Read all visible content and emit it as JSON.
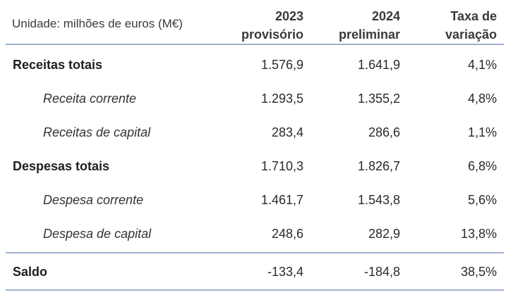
{
  "header": {
    "unit": "Unidade: milhões de euros (M€)",
    "col1_line1": "2023",
    "col1_line2": "provisório",
    "col2_line1": "2024",
    "col2_line2": "preliminar",
    "col3_line1": "Taxa de",
    "col3_line2": "variação"
  },
  "rows": [
    {
      "label": "Receitas totais",
      "v2023": "1.576,9",
      "v2024": "1.641,9",
      "rate": "4,1%"
    },
    {
      "label": "Receita corrente",
      "v2023": "1.293,5",
      "v2024": "1.355,2",
      "rate": "4,8%"
    },
    {
      "label": "Receitas de capital",
      "v2023": "283,4",
      "v2024": "286,6",
      "rate": "1,1%"
    },
    {
      "label": "Despesas totais",
      "v2023": "1.710,3",
      "v2024": "1.826,7",
      "rate": "6,8%"
    },
    {
      "label": "Despesa corrente",
      "v2023": "1.461,7",
      "v2024": "1.543,8",
      "rate": "5,6%"
    },
    {
      "label": "Despesa de capital",
      "v2023": "248,6",
      "v2024": "282,9",
      "rate": "13,8%"
    }
  ],
  "saldo": {
    "label": "Saldo",
    "v2023": "-133,4",
    "v2024": "-184,8",
    "rate": "38,5%"
  }
}
